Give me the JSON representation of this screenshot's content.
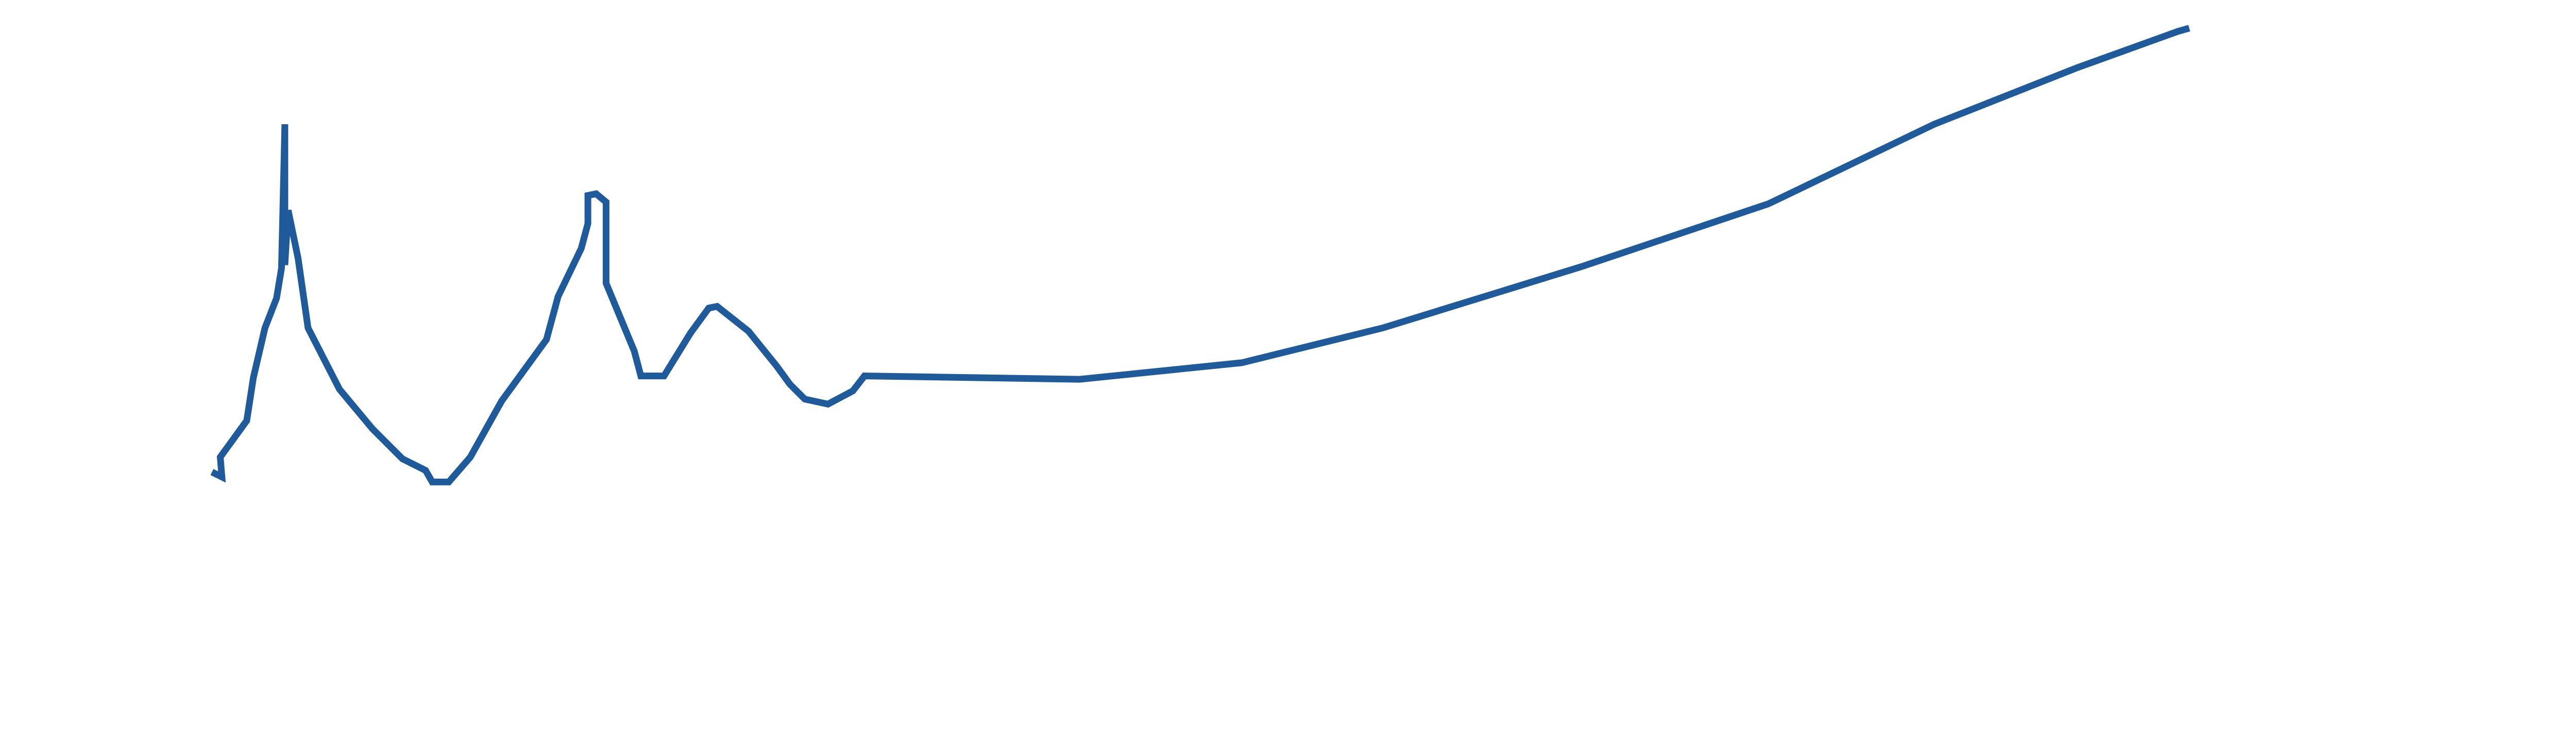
{
  "chart_data": {
    "type": "line",
    "x": [
      128,
      134,
      133,
      149,
      153,
      160,
      167,
      170,
      172,
      172,
      174,
      180,
      186,
      205,
      225,
      243,
      257,
      261,
      271,
      284,
      303,
      330,
      337,
      351,
      355,
      355,
      360,
      366,
      366,
      383,
      387,
      401,
      417,
      428,
      433,
      452,
      469,
      477,
      486,
      500,
      515,
      522,
      652,
      750,
      835,
      955,
      1068,
      1168,
      1254,
      1315,
      1322
    ],
    "series": [
      {
        "color": "#1f5a9a",
        "values": [
          163,
          160,
          172,
          194,
          220,
          250,
          268,
          286,
          373,
          288,
          321,
          292,
          250,
          213,
          189,
          171,
          164,
          157,
          157,
          172,
          206,
          243,
          269,
          298,
          313,
          330,
          331,
          326,
          277,
          236,
          221,
          221,
          247,
          262,
          263,
          248,
          227,
          216,
          207,
          204,
          212,
          221,
          219,
          229,
          250,
          287,
          325,
          373,
          407,
          429,
          431
        ]
      }
    ],
    "xlim": [
      0,
      1568
    ],
    "ylim": [
      0,
      448
    ]
  }
}
